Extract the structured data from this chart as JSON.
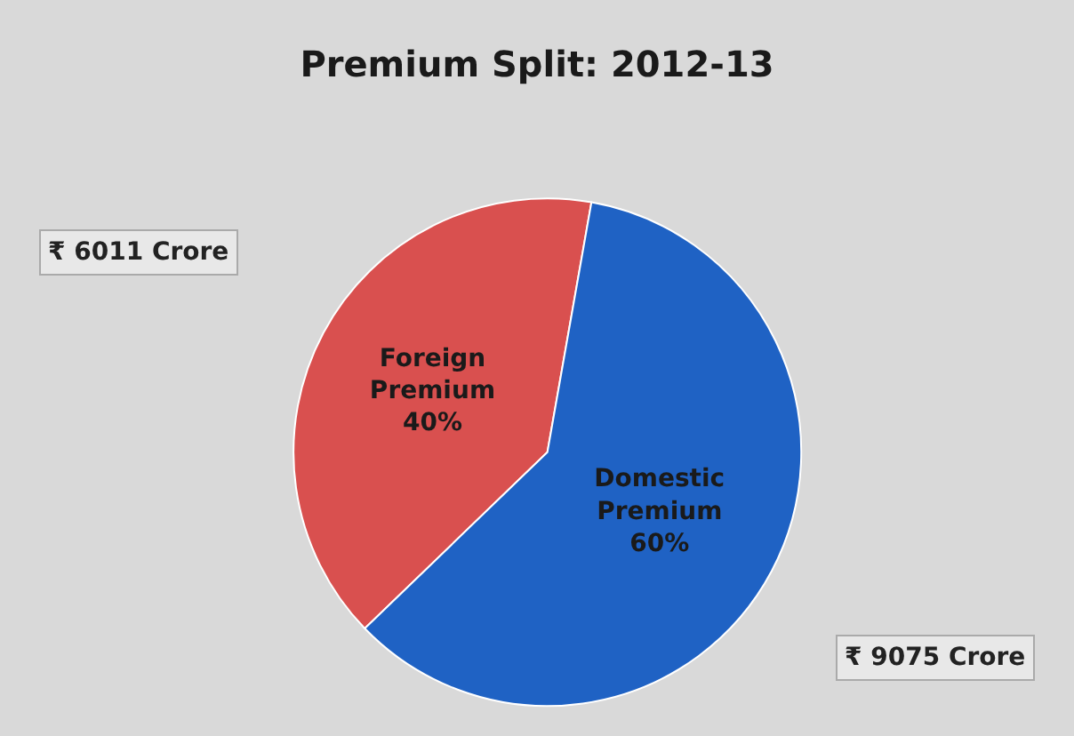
{
  "chart_data": {
    "type": "pie",
    "title": "Premium Split: 2012-13",
    "categories": [
      "Foreign Premium",
      "Domestic Premium"
    ],
    "values": [
      40,
      60
    ],
    "value_labels": [
      "40%",
      "60%"
    ],
    "colors": [
      "#d9504f",
      "#1f62c4"
    ],
    "annotations": [
      "₹ 6011 Crore",
      "₹ 9075 Crore"
    ]
  }
}
